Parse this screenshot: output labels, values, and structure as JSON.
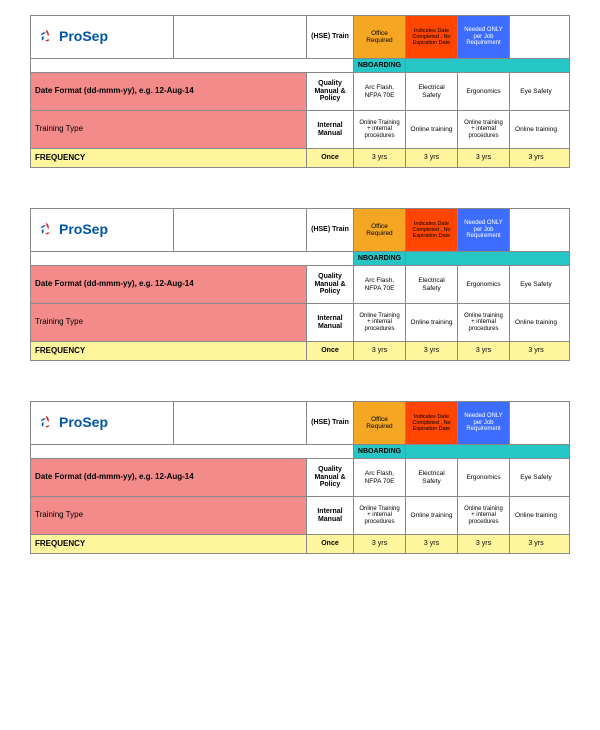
{
  "colors": {
    "pink": "#f48b8b",
    "yellow": "#fff59d",
    "orange_dark": "#f5a623",
    "orange_bright": "#ff4500",
    "blue": "#3d6dff",
    "teal": "#26c6c6",
    "white": "#ffffff",
    "logo_blue": "#0055a4",
    "logo_red": "#d32f2f"
  },
  "logo_text": "ProSep",
  "header": {
    "hse": "(HSE) Train",
    "legend1": "Office Required",
    "legend2": "Indicates Date Completed , No Expiration Date",
    "legend3": "Needed ONLY per Job Requirement"
  },
  "nboarding": "NBOARDING",
  "pink1": {
    "label": "Date Format (dd-mmm-yy), e.g. 12-Aug-14",
    "row_label": "Quality Manual & Policy",
    "c1": "Arc Flash, NFPA 70E",
    "c2": "Electrical Safety",
    "c3": "Ergonomics",
    "c4": "Eye Safety"
  },
  "pink2": {
    "label": "Training Type",
    "row_label": "Internal Manual",
    "c1": "Online Training + internal procedures",
    "c2": "Online training",
    "c3": "Online training + internal procedures",
    "c4": "Online training"
  },
  "freq": {
    "label": "FREQUENCY",
    "mid": "Once",
    "c": "3 yrs"
  }
}
